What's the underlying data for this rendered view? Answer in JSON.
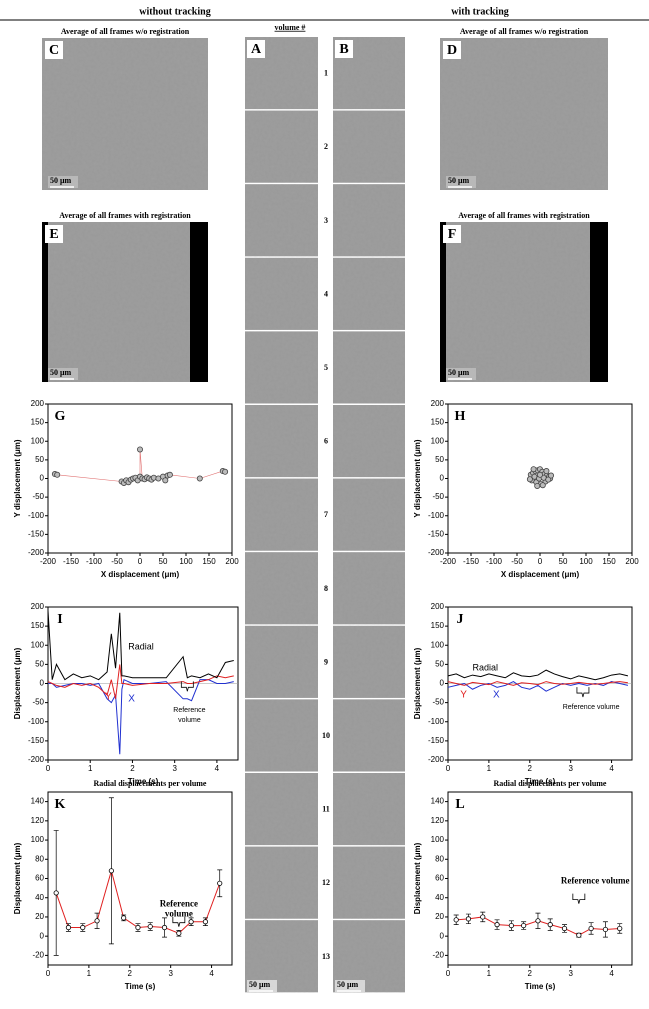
{
  "headers": {
    "left": "without tracking",
    "right": "with tracking",
    "volume": "volume #"
  },
  "volumes": [
    "1",
    "2",
    "3",
    "4",
    "5",
    "6",
    "7",
    "8",
    "9",
    "10",
    "11",
    "12",
    "13"
  ],
  "images": [
    {
      "letter": "C",
      "title": "Average of all frames w/o registration",
      "scale": "50 μm"
    },
    {
      "letter": "D",
      "title": "Average of all frames w/o registration",
      "scale": "50 μm"
    },
    {
      "letter": "E",
      "title": "Average of all frames with registration",
      "scale": "50 μm"
    },
    {
      "letter": "F",
      "title": "Average of all frames with registration",
      "scale": "50 μm"
    },
    {
      "letter": "A",
      "scale": "50 μm"
    },
    {
      "letter": "B",
      "scale": "50 μm"
    }
  ],
  "chart_data": [
    {
      "type": "scatter",
      "label": "G",
      "xlabel": "X displacement (μm)",
      "ylabel": "Y displacement (μm)",
      "xlim": [
        -200,
        200
      ],
      "ylim": [
        -200,
        200
      ],
      "xticks": [
        -200,
        -150,
        -100,
        -50,
        0,
        50,
        100,
        150,
        200
      ],
      "yticks": [
        -200,
        -150,
        -100,
        -50,
        0,
        50,
        100,
        150,
        200
      ],
      "color": "#444444",
      "line_color": "#e07070",
      "x": [
        -185,
        -180,
        -40,
        -35,
        -30,
        -25,
        -20,
        -15,
        -10,
        -5,
        0,
        0,
        5,
        10,
        15,
        20,
        25,
        30,
        40,
        50,
        55,
        60,
        65,
        130,
        180,
        185
      ],
      "values": [
        12,
        10,
        -8,
        -12,
        -5,
        -10,
        -3,
        0,
        2,
        -5,
        5,
        78,
        0,
        -2,
        3,
        0,
        -3,
        2,
        0,
        5,
        -5,
        8,
        10,
        0,
        20,
        18
      ]
    },
    {
      "type": "scatter",
      "label": "H",
      "xlabel": "X displacement (μm)",
      "ylabel": "Y displacement (μm)",
      "xlim": [
        -200,
        200
      ],
      "ylim": [
        -200,
        200
      ],
      "xticks": [
        -200,
        -150,
        -100,
        -50,
        0,
        50,
        100,
        150,
        200
      ],
      "yticks": [
        -200,
        -150,
        -100,
        -50,
        0,
        50,
        100,
        150,
        200
      ],
      "color": "#444444",
      "x": [
        -20,
        -15,
        -10,
        -5,
        0,
        5,
        10,
        15,
        20,
        -18,
        -8,
        2,
        12,
        22,
        -12,
        -2,
        8,
        18,
        -6,
        6,
        0,
        -14,
        14,
        -22,
        24
      ],
      "values": [
        10,
        15,
        20,
        22,
        25,
        18,
        12,
        8,
        5,
        -5,
        -10,
        -15,
        -8,
        0,
        5,
        0,
        2,
        -3,
        -20,
        -18,
        10,
        25,
        20,
        -2,
        8
      ]
    },
    {
      "type": "line",
      "label": "I",
      "xlabel": "Time (s)",
      "ylabel": "Displacement (μm)",
      "xlim": [
        0,
        4.5
      ],
      "ylim": [
        -200,
        200
      ],
      "xticks": [
        0,
        1,
        2,
        3,
        4
      ],
      "yticks": [
        -200,
        -150,
        -100,
        -50,
        0,
        50,
        100,
        150,
        200
      ],
      "annotation": [
        "Reference",
        "volume"
      ],
      "x": [
        0,
        0.1,
        0.2,
        0.4,
        0.6,
        0.8,
        1.0,
        1.2,
        1.4,
        1.5,
        1.6,
        1.7,
        1.75,
        1.8,
        2.0,
        2.4,
        2.8,
        3.2,
        3.3,
        3.4,
        3.6,
        3.8,
        4.0,
        4.2,
        4.4
      ],
      "series": [
        {
          "name": "Radial",
          "color": "#000000",
          "values": [
            190,
            10,
            50,
            10,
            25,
            15,
            20,
            10,
            30,
            130,
            40,
            185,
            20,
            20,
            15,
            15,
            15,
            70,
            15,
            20,
            15,
            25,
            15,
            55,
            60
          ]
        },
        {
          "name": "Y",
          "color": "#e02020",
          "values": [
            5,
            0,
            -5,
            -10,
            0,
            -5,
            0,
            -10,
            -30,
            10,
            -40,
            50,
            0,
            0,
            -5,
            0,
            0,
            5,
            0,
            0,
            5,
            10,
            20,
            15,
            20
          ]
        },
        {
          "name": "X",
          "color": "#2030d0",
          "values": [
            0,
            0,
            -10,
            -5,
            0,
            0,
            -5,
            0,
            -40,
            -50,
            -30,
            -185,
            -15,
            10,
            0,
            0,
            5,
            -40,
            -40,
            -45,
            10,
            10,
            0,
            0,
            5
          ]
        }
      ]
    },
    {
      "type": "line",
      "label": "J",
      "xlabel": "Time (s)",
      "ylabel": "Displacement (μm)",
      "xlim": [
        0,
        4.5
      ],
      "ylim": [
        -200,
        200
      ],
      "xticks": [
        0,
        1,
        2,
        3,
        4
      ],
      "yticks": [
        -200,
        -150,
        -100,
        -50,
        0,
        50,
        100,
        150,
        200
      ],
      "annotation": "Reference volume",
      "x": [
        0,
        0.2,
        0.4,
        0.6,
        0.8,
        1.0,
        1.2,
        1.4,
        1.6,
        1.8,
        2.0,
        2.2,
        2.4,
        2.6,
        2.8,
        3.0,
        3.2,
        3.4,
        3.6,
        3.8,
        4.0,
        4.2,
        4.4
      ],
      "series": [
        {
          "name": "Radial",
          "color": "#000000",
          "values": [
            20,
            25,
            15,
            22,
            18,
            25,
            20,
            15,
            28,
            20,
            18,
            22,
            35,
            25,
            18,
            12,
            20,
            15,
            10,
            15,
            22,
            25,
            20
          ]
        },
        {
          "name": "Y",
          "color": "#e02020",
          "values": [
            5,
            0,
            -5,
            3,
            0,
            -3,
            5,
            0,
            -5,
            2,
            0,
            -3,
            5,
            0,
            -2,
            0,
            3,
            0,
            -2,
            0,
            3,
            5,
            2
          ]
        },
        {
          "name": "X",
          "color": "#2030d0",
          "values": [
            -10,
            -5,
            0,
            -15,
            -5,
            0,
            -10,
            -5,
            5,
            -10,
            -15,
            -5,
            -20,
            -10,
            0,
            -5,
            0,
            -5,
            0,
            -5,
            5,
            0,
            -5
          ]
        }
      ]
    },
    {
      "type": "errorbar",
      "label": "K",
      "title": "Radial displacements  per volume",
      "xlabel": "Time (s)",
      "ylabel": "Displacement (μm)",
      "xlim": [
        0,
        4.5
      ],
      "ylim": [
        -30,
        150
      ],
      "xticks": [
        0,
        1,
        2,
        3,
        4
      ],
      "yticks": [
        -20,
        0,
        20,
        40,
        60,
        80,
        100,
        120,
        140
      ],
      "color": "#e02020",
      "annotation": [
        "Reference",
        "volume"
      ],
      "x": [
        0.2,
        0.5,
        0.85,
        1.2,
        1.55,
        1.85,
        2.2,
        2.5,
        2.85,
        3.2,
        3.5,
        3.85,
        4.2
      ],
      "values": [
        45,
        9,
        9,
        16,
        68,
        19,
        9,
        10,
        9,
        3,
        15,
        15,
        55
      ],
      "errors": [
        65,
        4,
        4,
        8,
        76,
        3,
        4,
        4,
        10,
        3,
        4,
        4,
        14
      ]
    },
    {
      "type": "errorbar",
      "label": "L",
      "title": "Radial displacements  per volume",
      "xlabel": "Time (s)",
      "ylabel": "Displacement (μm)",
      "xlim": [
        0,
        4.5
      ],
      "ylim": [
        -30,
        150
      ],
      "xticks": [
        0,
        1,
        2,
        3,
        4
      ],
      "yticks": [
        -20,
        0,
        20,
        40,
        60,
        80,
        100,
        120,
        140
      ],
      "color": "#e02020",
      "annotation": "Reference volume",
      "x": [
        0.2,
        0.5,
        0.85,
        1.2,
        1.55,
        1.85,
        2.2,
        2.5,
        2.85,
        3.2,
        3.5,
        3.85,
        4.2
      ],
      "values": [
        17,
        18,
        20,
        12,
        11,
        11,
        16,
        12,
        8,
        1,
        8,
        7,
        8
      ],
      "errors": [
        5,
        5,
        5,
        5,
        5,
        4,
        8,
        6,
        4,
        2,
        6,
        8,
        5
      ]
    }
  ]
}
